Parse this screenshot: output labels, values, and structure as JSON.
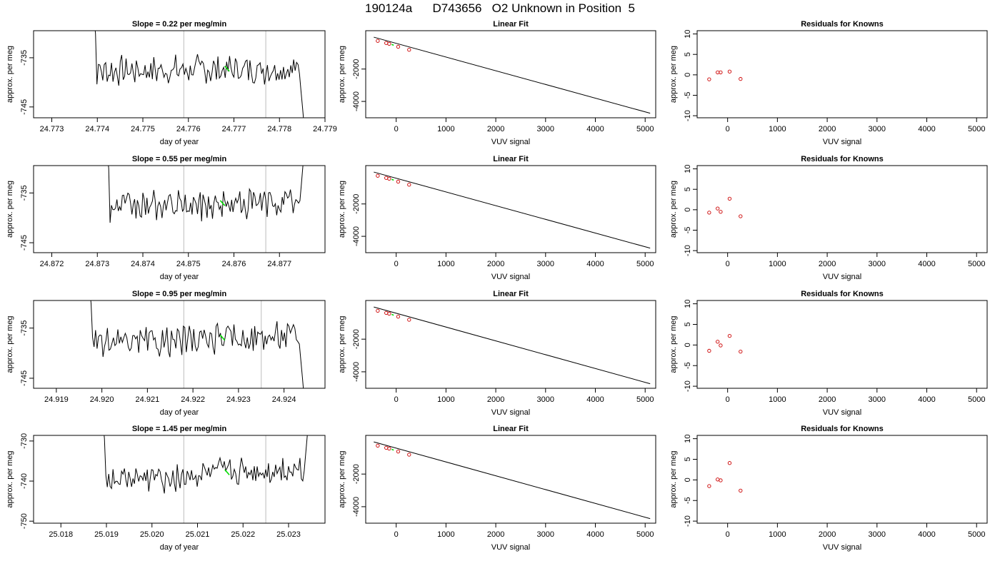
{
  "figure": {
    "title": "190124a      D743656   O2 Unknown in Position  5"
  },
  "chart_data": [
    {
      "type": "line",
      "title": "Slope =  0.22  per meg/min",
      "xlabel": "day of year",
      "ylabel": "approx. per meg",
      "xlim": [
        24.7726,
        24.779
      ],
      "ylim": [
        -747.2,
        -729.5
      ],
      "xticks": [
        "24.773",
        "24.774",
        "24.775",
        "24.776",
        "24.777",
        "24.778",
        "24.779"
      ],
      "yticks": [
        "-735",
        "-745"
      ],
      "start": 24.7738,
      "end": 24.7786,
      "vlines": [
        24.7759,
        24.7777
      ],
      "segment_x": [
        24.7768,
        24.7769
      ]
    },
    {
      "type": "line",
      "title": "Linear Fit",
      "xlabel": "VUV signal",
      "ylabel": "approx. per meg",
      "xlim": [
        -612,
        5212
      ],
      "ylim": [
        -5010,
        370
      ],
      "xticks": [
        "0",
        "1000",
        "2000",
        "3000",
        "4000",
        "5000"
      ],
      "yticks": [
        "-2000",
        "-4000"
      ],
      "fit_line": {
        "x": [
          -450,
          5100
        ],
        "y": [
          -30,
          -4730
        ]
      },
      "knowns": {
        "x": [
          -370,
          -200,
          -140,
          40,
          260
        ],
        "y": [
          -260,
          -390,
          -440,
          -620,
          -810
        ]
      },
      "unknown": {
        "x": [
          -90,
          -50
        ],
        "y": [
          -480,
          -530
        ]
      }
    },
    {
      "type": "scatter",
      "title": "Residuals for Knowns",
      "xlabel": "VUV signal",
      "ylabel": "approx. per meg",
      "xlim": [
        -612,
        5212
      ],
      "ylim": [
        -10.5,
        10.8
      ],
      "xticks": [
        "0",
        "1000",
        "2000",
        "3000",
        "4000",
        "5000"
      ],
      "yticks": [
        "10",
        "5",
        "0",
        "-5",
        "-10"
      ],
      "x": [
        -370,
        -200,
        -140,
        40,
        260
      ],
      "y": [
        -1.1,
        0.6,
        0.6,
        0.8,
        -1.0
      ]
    },
    {
      "type": "line",
      "title": "Slope =  0.55  per meg/min",
      "xlabel": "day of year",
      "ylabel": "approx. per meg",
      "xlim": [
        24.8716,
        24.878
      ],
      "ylim": [
        -747.0,
        -729.5
      ],
      "xticks": [
        "24.872",
        "24.873",
        "24.874",
        "24.875",
        "24.876",
        "24.877"
      ],
      "yticks": [
        "-735",
        "-745"
      ],
      "start": 24.8731,
      "end": 24.8776,
      "vlines": [
        24.8749,
        24.8767
      ],
      "segment_x": [
        24.8757,
        24.8758
      ]
    },
    {
      "type": "line",
      "title": "Linear Fit",
      "xlabel": "VUV signal",
      "ylabel": "approx. per meg",
      "xlim": [
        -612,
        5212
      ],
      "ylim": [
        -5010,
        370
      ],
      "xticks": [
        "0",
        "1000",
        "2000",
        "3000",
        "4000",
        "5000"
      ],
      "yticks": [
        "-2000",
        "-4000"
      ],
      "fit_line": {
        "x": [
          -450,
          5100
        ],
        "y": [
          -30,
          -4730
        ]
      },
      "knowns": {
        "x": [
          -370,
          -200,
          -140,
          40,
          260
        ],
        "y": [
          -260,
          -390,
          -440,
          -620,
          -810
        ]
      },
      "unknown": {
        "x": [
          -90,
          -50
        ],
        "y": [
          -480,
          -530
        ]
      }
    },
    {
      "type": "scatter",
      "title": "Residuals for Knowns",
      "xlabel": "VUV signal",
      "ylabel": "approx. per meg",
      "xlim": [
        -612,
        5212
      ],
      "ylim": [
        -10.5,
        10.8
      ],
      "xticks": [
        "0",
        "1000",
        "2000",
        "3000",
        "4000",
        "5000"
      ],
      "yticks": [
        "10",
        "5",
        "0",
        "-5",
        "-10"
      ],
      "x": [
        -370,
        -200,
        -140,
        40,
        260
      ],
      "y": [
        -0.7,
        0.3,
        -0.5,
        2.7,
        -1.6
      ]
    },
    {
      "type": "line",
      "title": "Slope =  0.95  per meg/min",
      "xlabel": "day of year",
      "ylabel": "approx. per meg",
      "xlim": [
        24.9185,
        24.9249
      ],
      "ylim": [
        -747.0,
        -729.5
      ],
      "xticks": [
        "24.919",
        "24.920",
        "24.921",
        "24.922",
        "24.923",
        "24.924"
      ],
      "yticks": [
        "-735",
        "-745"
      ],
      "start": 24.9196,
      "end": 24.9245,
      "vlines": [
        24.9218,
        24.9235
      ],
      "segment_x": [
        24.9226,
        24.9227
      ]
    },
    {
      "type": "line",
      "title": "Linear Fit",
      "xlabel": "VUV signal",
      "ylabel": "approx. per meg",
      "xlim": [
        -612,
        5212
      ],
      "ylim": [
        -5010,
        370
      ],
      "xticks": [
        "0",
        "1000",
        "2000",
        "3000",
        "4000",
        "5000"
      ],
      "yticks": [
        "-2000",
        "-4000"
      ],
      "fit_line": {
        "x": [
          -450,
          5100
        ],
        "y": [
          -30,
          -4730
        ]
      },
      "knowns": {
        "x": [
          -370,
          -200,
          -140,
          40,
          260
        ],
        "y": [
          -260,
          -390,
          -440,
          -620,
          -810
        ]
      },
      "unknown": {
        "x": [
          -90,
          -50
        ],
        "y": [
          -480,
          -530
        ]
      }
    },
    {
      "type": "scatter",
      "title": "Residuals for Knowns",
      "xlabel": "VUV signal",
      "ylabel": "approx. per meg",
      "xlim": [
        -612,
        5212
      ],
      "ylim": [
        -10.5,
        10.8
      ],
      "xticks": [
        "0",
        "1000",
        "2000",
        "3000",
        "4000",
        "5000"
      ],
      "yticks": [
        "10",
        "5",
        "0",
        "-5",
        "-10"
      ],
      "x": [
        -370,
        -200,
        -140,
        40,
        260
      ],
      "y": [
        -1.4,
        0.8,
        -0.1,
        2.2,
        -1.6
      ]
    },
    {
      "type": "line",
      "title": "Slope =  1.45  per meg/min",
      "xlabel": "day of year",
      "ylabel": "approx. per meg",
      "xlim": [
        25.0174,
        25.0238
      ],
      "ylim": [
        -750.5,
        -728.6
      ],
      "xticks": [
        "25.018",
        "25.019",
        "25.020",
        "25.021",
        "25.022",
        "25.023"
      ],
      "yticks": [
        "-730",
        "-740",
        "-750"
      ],
      "start": 25.0188,
      "end": 25.0235,
      "vlines": [
        25.0207,
        25.0225
      ],
      "segment_x": [
        25.0216,
        25.0217
      ]
    },
    {
      "type": "line",
      "title": "Linear Fit",
      "xlabel": "VUV signal",
      "ylabel": "approx. per meg",
      "xlim": [
        -612,
        5212
      ],
      "ylim": [
        -5010,
        370
      ],
      "xticks": [
        "0",
        "1000",
        "2000",
        "3000",
        "4000",
        "5000"
      ],
      "yticks": [
        "-2000",
        "-4000"
      ],
      "fit_line": {
        "x": [
          -450,
          5100
        ],
        "y": [
          -30,
          -4730
        ]
      },
      "knowns": {
        "x": [
          -370,
          -200,
          -140,
          40,
          260
        ],
        "y": [
          -260,
          -390,
          -440,
          -620,
          -810
        ]
      },
      "unknown": {
        "x": [
          -90,
          -50
        ],
        "y": [
          -480,
          -530
        ]
      }
    },
    {
      "type": "scatter",
      "title": "Residuals for Knowns",
      "xlabel": "VUV signal",
      "ylabel": "approx. per meg",
      "xlim": [
        -612,
        5212
      ],
      "ylim": [
        -10.5,
        10.8
      ],
      "xticks": [
        "0",
        "1000",
        "2000",
        "3000",
        "4000",
        "5000"
      ],
      "yticks": [
        "10",
        "5",
        "0",
        "-5",
        "-10"
      ],
      "x": [
        -370,
        -200,
        -140,
        40,
        260
      ],
      "y": [
        -1.5,
        0.1,
        -0.1,
        4.1,
        -2.6
      ]
    }
  ],
  "colors": {
    "trace": "#000000",
    "unknown": "#00dd00",
    "knowns": "#cc0000",
    "vline": "#c8c8c8",
    "frame": "#000000"
  }
}
